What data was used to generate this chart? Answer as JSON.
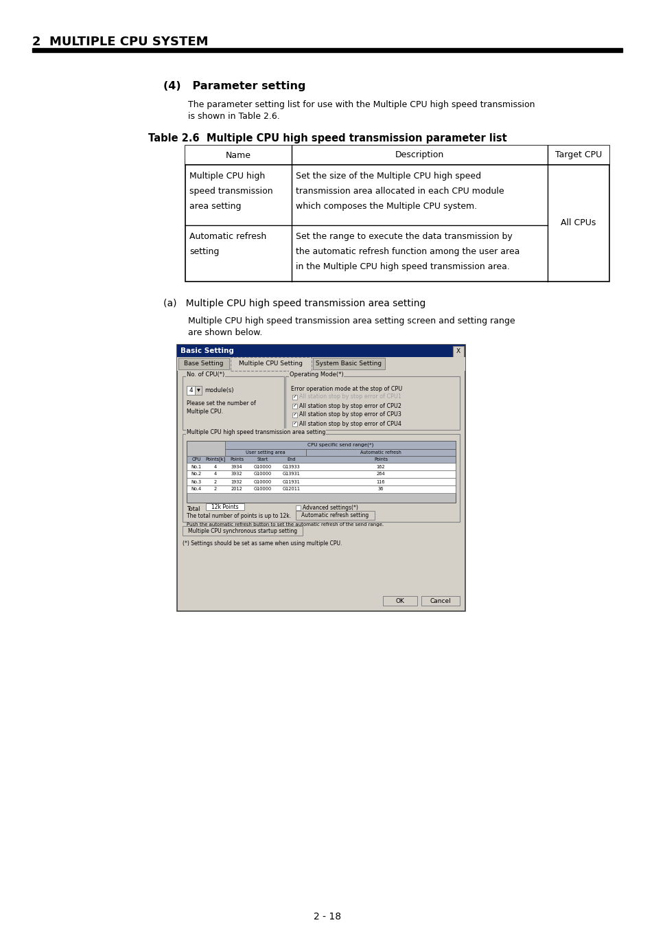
{
  "page_title": "2  MULTIPLE CPU SYSTEM",
  "section_title": "(4)   Parameter setting",
  "section_body_1": "The parameter setting list for use with the Multiple CPU high speed transmission",
  "section_body_2": "is shown in Table 2.6.",
  "table_title": "Table 2.6  Multiple CPU high speed transmission parameter list",
  "table_headers": [
    "Name",
    "Description",
    "Target CPU"
  ],
  "table_row1_name": [
    "Multiple CPU high",
    "speed transmission",
    "area setting"
  ],
  "table_row1_desc": [
    "Set the size of the Multiple CPU high speed",
    "transmission area allocated in each CPU module",
    "which composes the Multiple CPU system."
  ],
  "table_row1_target": "All CPUs",
  "table_row2_name": [
    "Automatic refresh",
    "setting"
  ],
  "table_row2_desc": [
    "Set the range to execute the data transmission by",
    "the automatic refresh function among the user area",
    "in the Multiple CPU high speed transmission area."
  ],
  "subsection_title": "(a)   Multiple CPU high speed transmission area setting",
  "subsection_body_1": "Multiple CPU high speed transmission area setting screen and setting range",
  "subsection_body_2": "are shown below.",
  "page_number": "2 - 18",
  "bg_color": "#ffffff",
  "header_bar_color": "#000000",
  "dialog_title": "Basic Setting",
  "dialog_bg": "#d4d0c8",
  "dialog_title_bg": "#0a246a",
  "tab_labels": [
    "Base Setting",
    "Multiple CPU Setting",
    "System Basic Setting"
  ],
  "cpu_checkboxes": [
    [
      "All station stop by stop error of CPU1",
      true,
      true
    ],
    [
      "All station stop by stop error of CPU2",
      false,
      true
    ],
    [
      "All station stop by stop error of CPU3",
      false,
      true
    ],
    [
      "All station stop by stop error of CPU4",
      false,
      true
    ]
  ],
  "data_rows": [
    [
      "No.1",
      "4",
      "3934",
      "G10000",
      "G13933",
      "162"
    ],
    [
      "No.2",
      "4",
      "3932",
      "G10000",
      "G13931",
      "264"
    ],
    [
      "No.3",
      "2",
      "1932",
      "G10000",
      "G11931",
      "116"
    ],
    [
      "No.4",
      "2",
      "2012",
      "G10000",
      "G12011",
      "36"
    ]
  ]
}
